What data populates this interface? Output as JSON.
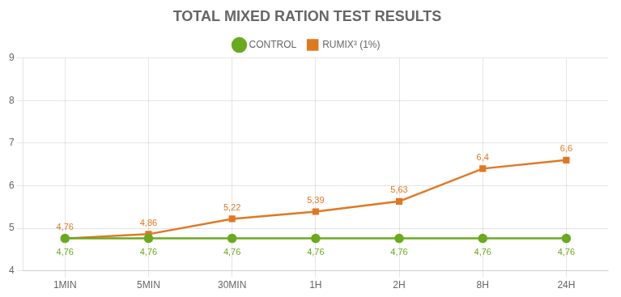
{
  "chart_data": {
    "type": "line",
    "title": "TOTAL MIXED RATION TEST RESULTS",
    "categories": [
      "1MIN",
      "5MIN",
      "30MIN",
      "1H",
      "2H",
      "8H",
      "24H"
    ],
    "series": [
      {
        "name": "CONTROL",
        "color": "#6aaa1e",
        "marker": "circle",
        "values": [
          4.76,
          4.76,
          4.76,
          4.76,
          4.76,
          4.76,
          4.76
        ],
        "value_labels": [
          "4,76",
          "4,76",
          "4,76",
          "4,76",
          "4,76",
          "4,76",
          "4,76"
        ]
      },
      {
        "name": "RUMIX³ (1%)",
        "color": "#e07820",
        "marker": "square",
        "values": [
          4.76,
          4.86,
          5.22,
          5.39,
          5.63,
          6.4,
          6.6
        ],
        "value_labels": [
          "4,76",
          "4,86",
          "5,22",
          "5,39",
          "5,63",
          "6,4",
          "6,6"
        ]
      }
    ],
    "ylim": [
      4,
      9
    ],
    "yticks": [
      4,
      5,
      6,
      7,
      8,
      9
    ],
    "grid": true,
    "legend": "top",
    "data_labels": true
  }
}
